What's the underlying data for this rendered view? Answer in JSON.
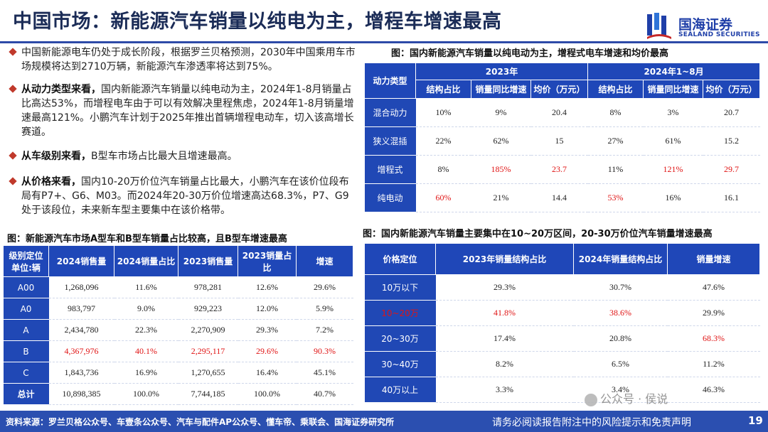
{
  "title": "中国市场：新能源汽车销量以纯电为主，增程车增速最高",
  "logo": {
    "cn": "国海证券",
    "en": "SEALAND SECURITIES"
  },
  "bullets": [
    {
      "emphasis": "",
      "text": "中国新能源电车仍处于成长阶段，根据罗兰贝格预测，2030年中国乘用车市场规模将达到2710万辆，新能源汽车渗透率将达到75%。"
    },
    {
      "emphasis": "从动力类型来看，",
      "text": "国内新能源汽车销量以纯电动为主，2024年1-8月销量占比高达53%，而增程电车由于可以有效解决里程焦虑，2024年1-8月销量增速最高121%。小鹏汽车计划于2025年推出首辆增程电动车，切入该高增长赛道。"
    },
    {
      "emphasis": "从车级别来看，",
      "text": "B型车市场占比最大且增速最高。"
    },
    {
      "emphasis": "从价格来看，",
      "text": "国内10-20万价位汽车销量占比最大，小鹏汽车在该价位段布局有P7+、G6、M03。而2024年20-30万价位增速高达68.3%，P7、G9处于该段位，未来新车型主要集中在该价格带。"
    }
  ],
  "table1": {
    "caption": "图：国内新能源汽车销量以纯电动为主，增程式电车增速和均价最高",
    "corner": "动力类型",
    "groups": [
      "2023年",
      "2024年1~8月"
    ],
    "subheaders": [
      "结构占比",
      "销量同比增速",
      "均价（万元）",
      "结构占比",
      "销量同比增速",
      "均价（万元）"
    ],
    "rows": [
      {
        "label": "混合动力",
        "cells": [
          "10%",
          "9%",
          "20.4",
          "8%",
          "3%",
          "20.7"
        ]
      },
      {
        "label": "狭义混插",
        "cells": [
          "22%",
          "62%",
          "15",
          "27%",
          "61%",
          "15.2"
        ]
      },
      {
        "label": "增程式",
        "cells": [
          "8%",
          "185%",
          "23.7",
          "11%",
          "121%",
          "29.7"
        ]
      },
      {
        "label": "纯电动",
        "cells": [
          "60%",
          "21%",
          "14.4",
          "53%",
          "16%",
          "16.1"
        ]
      }
    ]
  },
  "table2": {
    "caption": "图：新能源汽车市场A型车和B型车销量占比较高，且B型车增速最高",
    "headers": [
      "级别定位\n单位:辆",
      "2024销售量",
      "2024销量占比",
      "2023销售量",
      "2023销量占比",
      "增速"
    ],
    "rows": [
      {
        "label": "A00",
        "cells": [
          "1,268,096",
          "11.6%",
          "978,281",
          "12.6%",
          "29.6%"
        ]
      },
      {
        "label": "A0",
        "cells": [
          "983,797",
          "9.0%",
          "929,223",
          "12.0%",
          "5.9%"
        ]
      },
      {
        "label": "A",
        "cells": [
          "2,434,780",
          "22.3%",
          "2,270,909",
          "29.3%",
          "7.2%"
        ]
      },
      {
        "label": "B",
        "cells": [
          "4,367,976",
          "40.1%",
          "2,295,117",
          "29.6%",
          "90.3%"
        ]
      },
      {
        "label": "C",
        "cells": [
          "1,843,736",
          "16.9%",
          "1,270,655",
          "16.4%",
          "45.1%"
        ]
      },
      {
        "label": "总计",
        "cells": [
          "10,898,385",
          "100.0%",
          "7,744,185",
          "100.0%",
          "40.7%"
        ]
      }
    ]
  },
  "table3": {
    "caption": "图：国内新能源汽车销量主要集中在10~20万区间，20-30万价位汽车销量增速最高",
    "headers": [
      "价格定位",
      "2023年销量结构占比",
      "2024年销量结构占比",
      "销量增速"
    ],
    "rows": [
      {
        "label": "10万以下",
        "cells": [
          "29.3%",
          "30.7%",
          "47.6%"
        ]
      },
      {
        "label": "10~20万",
        "cells": [
          "41.8%",
          "38.6%",
          "29.9%"
        ]
      },
      {
        "label": "20~30万",
        "cells": [
          "17.4%",
          "20.8%",
          "68.3%"
        ]
      },
      {
        "label": "30~40万",
        "cells": [
          "8.2%",
          "6.5%",
          "11.2%"
        ]
      },
      {
        "label": "40万以上",
        "cells": [
          "3.3%",
          "3.4%",
          "46.3%"
        ]
      }
    ]
  },
  "footer": {
    "source": "资料来源：罗兰贝格公众号、车壹条公众号、汽车与配件AP公众号、懂车帝、乘联会、国海证券研究所",
    "disclaimer": "请务必阅读报告附注中的风险提示和免责声明",
    "page": "19"
  },
  "watermark": "公众号 · 侯说",
  "colors": {
    "brand": "#1f47b8",
    "highlight": "#e01414",
    "bullet": "#c0392b"
  }
}
